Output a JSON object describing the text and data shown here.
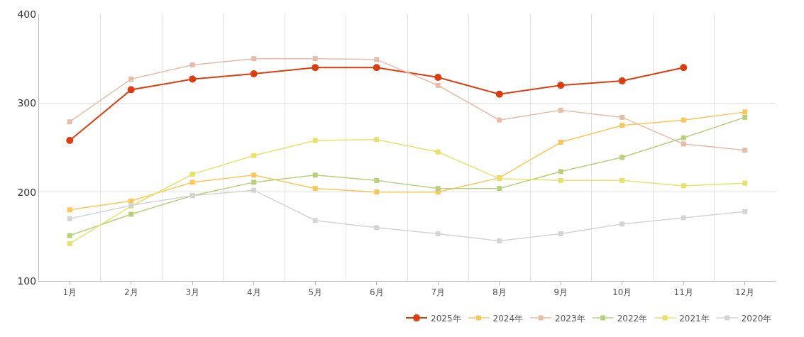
{
  "chart_data": {
    "type": "line",
    "categories": [
      "1月",
      "2月",
      "3月",
      "4月",
      "5月",
      "6月",
      "7月",
      "8月",
      "9月",
      "10月",
      "11月",
      "12月"
    ],
    "ylim": [
      100,
      400
    ],
    "yticks": [
      100,
      200,
      300,
      400
    ],
    "grid": true,
    "legend": "bottom right",
    "series": [
      {
        "name": "2025年",
        "color": "#dc3d0f",
        "marker": "circle",
        "values": [
          258,
          315,
          327,
          333,
          340,
          340,
          329,
          310,
          320,
          325,
          340,
          null
        ]
      },
      {
        "name": "2024年",
        "color": "#fcc65a",
        "marker": "square",
        "values": [
          180,
          190,
          211,
          219,
          204,
          200,
          200,
          216,
          256,
          275,
          281,
          290
        ]
      },
      {
        "name": "2023年",
        "color": "#e8bba8",
        "marker": "square",
        "values": [
          279,
          327,
          343,
          350,
          350,
          349,
          320,
          281,
          292,
          284,
          254,
          247
        ]
      },
      {
        "name": "2022年",
        "color": "#b7d07a",
        "marker": "square",
        "values": [
          151,
          175,
          196,
          211,
          219,
          213,
          204,
          204,
          223,
          239,
          261,
          284
        ]
      },
      {
        "name": "2021年",
        "color": "#e6e26c",
        "marker": "square",
        "values": [
          142,
          184,
          220,
          241,
          258,
          259,
          245,
          215,
          213,
          213,
          207,
          210
        ]
      },
      {
        "name": "2020年",
        "color": "#d4d4d4",
        "marker": "square",
        "values": [
          170,
          185,
          196,
          202,
          168,
          160,
          153,
          145,
          153,
          164,
          171,
          178
        ]
      }
    ]
  }
}
